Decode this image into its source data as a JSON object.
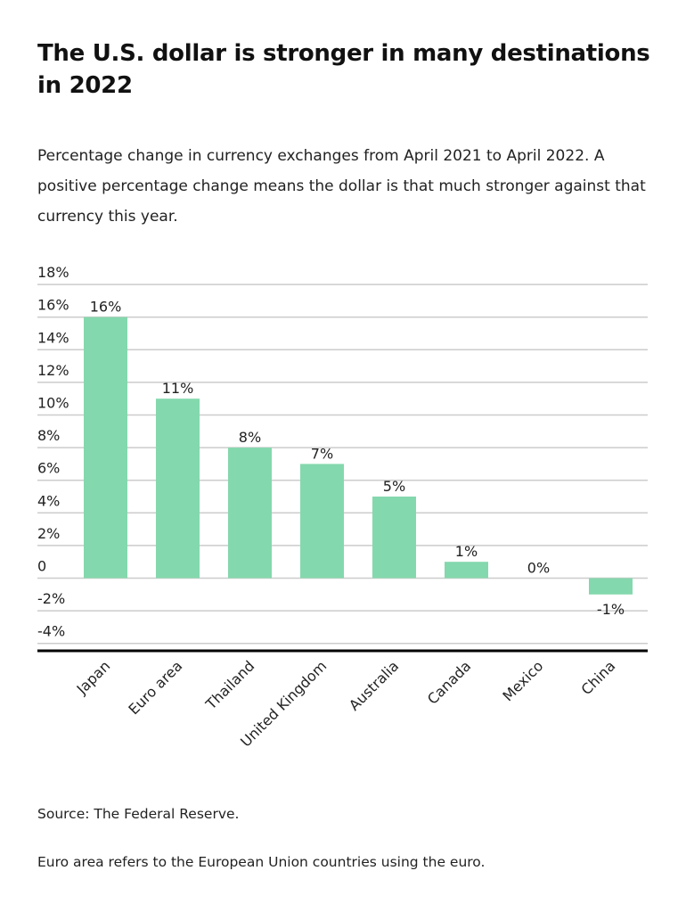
{
  "chart_data": {
    "type": "bar",
    "title": "The U.S. dollar is stronger in many destinations in 2022",
    "subtitle": "Percentage change in currency exchanges from April 2021 to April 2022. A positive percentage change means the dollar is that much stronger against that currency this year.",
    "categories": [
      "Japan",
      "Euro area",
      "Thailand",
      "United Kingdom",
      "Australia",
      "Canada",
      "Mexico",
      "China"
    ],
    "values": [
      16,
      11,
      8,
      7,
      5,
      1,
      0,
      -1
    ],
    "data_labels": [
      "16%",
      "11%",
      "8%",
      "7%",
      "5%",
      "1%",
      "0%",
      "-1%"
    ],
    "ylim": [
      -4,
      18
    ],
    "yticks": [
      18,
      16,
      14,
      12,
      10,
      8,
      6,
      4,
      2,
      0,
      -2,
      -4
    ],
    "ytick_labels": [
      "18%",
      "16%",
      "14%",
      "12%",
      "10%",
      "8%",
      "6%",
      "4%",
      "2%",
      "0",
      "-2%",
      "-4%"
    ],
    "xlabel": "",
    "ylabel": "",
    "grid": true,
    "bar_color": "#84d8ad",
    "grid_color": "#cccccc"
  },
  "notes": {
    "source": "Source: The Federal Reserve.",
    "footnote": "Euro area refers to the European Union countries using the euro."
  }
}
